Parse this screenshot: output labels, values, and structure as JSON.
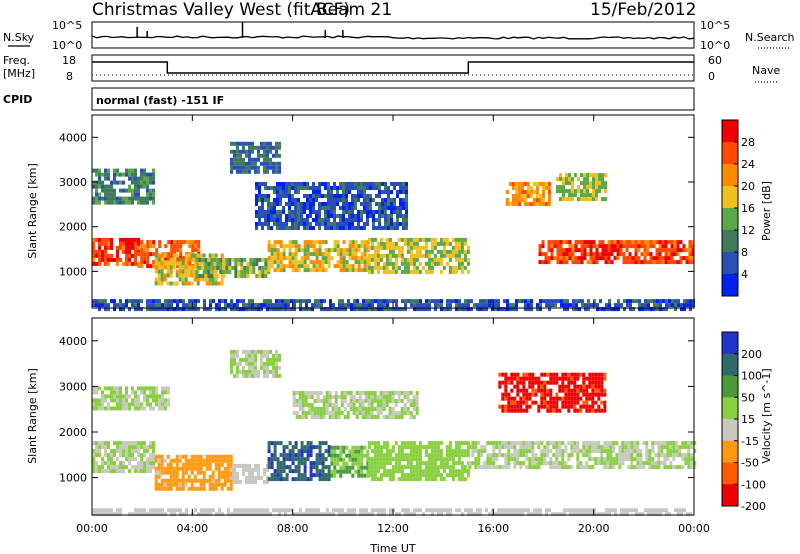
{
  "header": {
    "title": "Christmas Valley West (fitACF)",
    "beam": "Beam 21",
    "date": "15/Feb/2012"
  },
  "nsky_panel": {
    "left_label": "N.Sky",
    "right_label": "N.Search",
    "y_ticks_left": [
      "10^5",
      "10^0"
    ],
    "y_ticks_right": [
      "10^5",
      "10^0"
    ]
  },
  "freq_panel": {
    "left_label_1": "Freq.",
    "left_label_2": "[MHz]",
    "right_label": "Nave",
    "y_ticks_left": [
      "18",
      "8"
    ],
    "y_ticks_right": [
      "60",
      "0"
    ],
    "freq_steps": [
      {
        "from_hour": 0,
        "to_hour": 3.0,
        "level": "high"
      },
      {
        "from_hour": 3.0,
        "to_hour": 15.0,
        "level": "low"
      },
      {
        "from_hour": 15.0,
        "to_hour": 24,
        "level": "high"
      }
    ]
  },
  "cpid_panel": {
    "left_label": "CPID",
    "text": "normal (fast) -151 IF"
  },
  "colors": {
    "power_scale": [
      "#0022ee",
      "#2b4fb8",
      "#3f7a5a",
      "#5aa846",
      "#f0c020",
      "#ff8a00",
      "#ff4800",
      "#ee0000"
    ],
    "velocity_scale": [
      "#2233cc",
      "#2f6a6a",
      "#4a9a3a",
      "#88d040",
      "#c8c8c0",
      "#ff9a10",
      "#ff5a00",
      "#ee0000"
    ]
  },
  "chart_data": [
    {
      "type": "heatmap",
      "name": "power",
      "ylabel": "Slant Range [km]",
      "x_ticks": [
        "00:00",
        "04:00",
        "08:00",
        "12:00",
        "16:00",
        "20:00",
        "00:00"
      ],
      "x_tick_hours": [
        0,
        4,
        8,
        12,
        16,
        20,
        24
      ],
      "y_ticks": [
        1000,
        2000,
        3000,
        4000
      ],
      "ylim": [
        180,
        4500
      ],
      "colorbar": {
        "label": "Power [dB]",
        "ticks": [
          "28",
          "24",
          "20",
          "16",
          "12",
          "8",
          "4"
        ],
        "range": [
          0,
          32
        ]
      },
      "regions": [
        {
          "t0": 0,
          "t1": 1.8,
          "r0": 1150,
          "r1": 1750,
          "value": 27
        },
        {
          "t0": 1.8,
          "t1": 4.2,
          "r0": 1100,
          "r1": 1700,
          "value": 25
        },
        {
          "t0": 2.5,
          "t1": 5.2,
          "r0": 750,
          "r1": 1400,
          "value": 18
        },
        {
          "t0": 4.0,
          "t1": 7.0,
          "r0": 900,
          "r1": 1300,
          "value": 14
        },
        {
          "t0": 7.0,
          "t1": 11.0,
          "r0": 1000,
          "r1": 1700,
          "value": 18
        },
        {
          "t0": 11.0,
          "t1": 15.0,
          "r0": 950,
          "r1": 1750,
          "value": 16
        },
        {
          "t0": 17.8,
          "t1": 24,
          "r0": 1200,
          "r1": 1700,
          "value": 27
        },
        {
          "t0": 16.5,
          "t1": 18.2,
          "r0": 2500,
          "r1": 3000,
          "value": 22
        },
        {
          "t0": 18.5,
          "t1": 20.5,
          "r0": 2600,
          "r1": 3200,
          "value": 16
        },
        {
          "t0": 0,
          "t1": 2.5,
          "r0": 2500,
          "r1": 3300,
          "value": 10
        },
        {
          "t0": 5.5,
          "t1": 7.5,
          "r0": 3200,
          "r1": 3900,
          "value": 8
        },
        {
          "t0": 6.5,
          "t1": 12.5,
          "r0": 2000,
          "r1": 3000,
          "value": 6
        },
        {
          "t0": 0,
          "t1": 24,
          "r0": 180,
          "r1": 380,
          "value": 6
        }
      ]
    },
    {
      "type": "heatmap",
      "name": "velocity",
      "ylabel": "Slant Range [km]",
      "x_ticks": [
        "00:00",
        "04:00",
        "08:00",
        "12:00",
        "16:00",
        "20:00",
        "00:00"
      ],
      "x_tick_hours": [
        0,
        4,
        8,
        12,
        16,
        20,
        24
      ],
      "y_ticks": [
        1000,
        2000,
        3000,
        4000
      ],
      "ylim": [
        180,
        4500
      ],
      "xlabel": "Time UT",
      "colorbar": {
        "label": "Velocity [m s^-1]",
        "ticks": [
          "200",
          "100",
          "50",
          "15",
          "-15",
          "-50",
          "-100",
          "-200"
        ],
        "range": [
          -250,
          250
        ]
      },
      "regions": [
        {
          "t0": 0,
          "t1": 2.5,
          "r0": 1150,
          "r1": 1800,
          "value": 0
        },
        {
          "t0": 2.5,
          "t1": 5.5,
          "r0": 750,
          "r1": 1500,
          "value": -80
        },
        {
          "t0": 5.5,
          "t1": 7.0,
          "r0": 900,
          "r1": 1300,
          "value": -40
        },
        {
          "t0": 7.0,
          "t1": 9.5,
          "r0": 1000,
          "r1": 1800,
          "value": 180
        },
        {
          "t0": 9.5,
          "t1": 11.0,
          "r0": 1000,
          "r1": 1700,
          "value": 60
        },
        {
          "t0": 11.0,
          "t1": 15.0,
          "r0": 950,
          "r1": 1800,
          "value": 35
        },
        {
          "t0": 15.0,
          "t1": 24,
          "r0": 1200,
          "r1": 1800,
          "value": 0
        },
        {
          "t0": 16.2,
          "t1": 20.5,
          "r0": 2500,
          "r1": 3300,
          "value": -200
        },
        {
          "t0": 0,
          "t1": 3.0,
          "r0": 2500,
          "r1": 3000,
          "value": 0
        },
        {
          "t0": 5.5,
          "t1": 7.5,
          "r0": 3200,
          "r1": 3800,
          "value": 0
        },
        {
          "t0": 8.0,
          "t1": 13.0,
          "r0": 2300,
          "r1": 2900,
          "value": 0
        },
        {
          "t0": 0,
          "t1": 24,
          "r0": 180,
          "r1": 330,
          "value": -30
        }
      ]
    }
  ]
}
